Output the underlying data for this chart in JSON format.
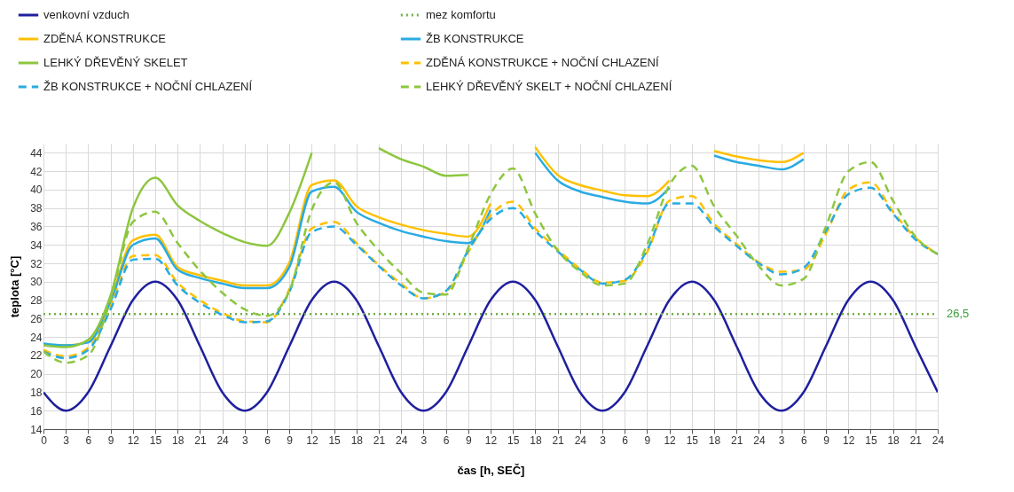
{
  "chart_data": {
    "type": "line",
    "xlabel": "čas [h, SEČ]",
    "ylabel": "teplota [°C]",
    "categories": [
      "0",
      "3",
      "6",
      "9",
      "12",
      "15",
      "18",
      "21",
      "24",
      "3",
      "6",
      "9",
      "12",
      "15",
      "18",
      "21",
      "24",
      "3",
      "6",
      "9",
      "12",
      "15",
      "18",
      "21",
      "24",
      "3",
      "6",
      "9",
      "12",
      "15",
      "18",
      "21",
      "24",
      "3",
      "6",
      "9",
      "12",
      "15",
      "18",
      "21",
      "24"
    ],
    "ylim": [
      14,
      45
    ],
    "yticks": [
      14,
      16,
      18,
      20,
      22,
      24,
      26,
      28,
      30,
      32,
      34,
      36,
      38,
      40,
      42,
      44
    ],
    "grid": true,
    "legend": "top",
    "series": [
      {
        "name": "venkovní vzduch",
        "color": "#1f1f9e",
        "line_style": "solid",
        "values": [
          18,
          16,
          18,
          23,
          28,
          30,
          28,
          23,
          18,
          16,
          18,
          23,
          28,
          30,
          28,
          23,
          18,
          16,
          18,
          23,
          28,
          30,
          28,
          23,
          18,
          16,
          18,
          23,
          28,
          30,
          28,
          23,
          18,
          16,
          18,
          23,
          28,
          30,
          28,
          23,
          18
        ]
      },
      {
        "name": "mez komfortu",
        "type": "line",
        "color": "#70ad47",
        "line_style": "dotted",
        "values": [
          26.5,
          26.5,
          26.5,
          26.5,
          26.5,
          26.5,
          26.5,
          26.5,
          26.5,
          26.5,
          26.5,
          26.5,
          26.5,
          26.5,
          26.5,
          26.5,
          26.5,
          26.5,
          26.5,
          26.5,
          26.5,
          26.5,
          26.5,
          26.5,
          26.5,
          26.5,
          26.5,
          26.5,
          26.5,
          26.5,
          26.5,
          26.5,
          26.5,
          26.5,
          26.5,
          26.5,
          26.5,
          26.5,
          26.5,
          26.5,
          26.5
        ],
        "value_labels": [
          null,
          null,
          null,
          null,
          null,
          null,
          null,
          null,
          null,
          null,
          null,
          null,
          null,
          null,
          null,
          null,
          null,
          null,
          null,
          null,
          null,
          null,
          null,
          null,
          null,
          null,
          null,
          null,
          null,
          null,
          null,
          null,
          null,
          null,
          null,
          null,
          null,
          null,
          null,
          null,
          "26,5"
        ]
      },
      {
        "name": "ZDĚNÁ KONSTRUKCE",
        "color": "#ffc000",
        "line_style": "solid",
        "values": [
          23.2,
          23.1,
          23.5,
          28.0,
          34.5,
          35.1,
          31.6,
          30.7,
          30.1,
          29.6,
          29.6,
          32.1,
          40.5,
          41.0,
          38.2,
          37.0,
          36.2,
          35.6,
          35.2,
          34.9,
          38.5,
          null,
          44.6,
          41.6,
          40.5,
          39.9,
          39.4,
          39.3,
          41.0,
          null,
          44.2,
          43.6,
          43.2,
          43.0,
          44.0,
          null,
          null,
          null,
          null,
          null,
          null
        ]
      },
      {
        "name": "ŽB KONSTRUKCE",
        "color": "#29abe2",
        "line_style": "solid",
        "values": [
          23.3,
          23.1,
          23.4,
          27.8,
          34.0,
          34.7,
          31.3,
          30.4,
          29.8,
          29.3,
          29.3,
          31.6,
          39.8,
          40.3,
          37.6,
          36.4,
          35.5,
          34.9,
          34.4,
          34.2,
          37.8,
          null,
          44.0,
          41.0,
          39.8,
          39.2,
          38.7,
          38.5,
          40.2,
          null,
          43.7,
          43.0,
          42.6,
          42.2,
          43.3,
          null,
          null,
          null,
          null,
          null,
          null
        ]
      },
      {
        "name": "LEHKÝ DŘEVĚNÝ SKELET",
        "color": "#8dc63f",
        "line_style": "solid",
        "values": [
          23.1,
          22.9,
          23.7,
          28.5,
          38.0,
          41.3,
          38.3,
          36.6,
          35.3,
          34.3,
          33.9,
          37.5,
          44.0,
          null,
          null,
          44.5,
          43.3,
          42.5,
          41.5,
          41.6,
          null,
          null,
          null,
          null,
          null,
          null,
          null,
          null,
          null,
          null,
          null,
          null,
          null,
          null,
          null,
          null,
          null,
          null,
          null,
          null,
          null
        ]
      },
      {
        "name": "ZDĚNÁ KONSTRUKCE + NOČNÍ CHLAZENÍ",
        "color": "#ffc000",
        "line_style": "dashed",
        "values": [
          22.6,
          21.9,
          22.8,
          27.3,
          32.8,
          32.9,
          29.9,
          28.0,
          26.6,
          25.7,
          25.6,
          29.2,
          35.8,
          36.5,
          34.2,
          31.8,
          29.8,
          28.2,
          28.9,
          33.2,
          37.2,
          38.7,
          35.8,
          33.5,
          31.4,
          29.9,
          30.1,
          33.2,
          38.8,
          39.3,
          36.3,
          34.1,
          32.1,
          31.1,
          31.3,
          35.2,
          40.0,
          40.8,
          37.6,
          34.8,
          33.0
        ]
      },
      {
        "name": "ŽB KONSTRUKCE + NOČNÍ CHLAZENÍ",
        "color": "#29abe2",
        "line_style": "dashed",
        "values": [
          22.4,
          21.7,
          22.6,
          27.0,
          32.4,
          32.5,
          29.6,
          27.7,
          26.4,
          25.6,
          25.7,
          28.9,
          35.4,
          36.0,
          34.0,
          31.7,
          29.6,
          28.2,
          29.0,
          33.4,
          36.8,
          38.0,
          35.5,
          33.3,
          31.3,
          29.8,
          30.2,
          33.4,
          38.5,
          38.5,
          36.0,
          33.9,
          32.0,
          30.8,
          31.5,
          35.5,
          39.5,
          40.2,
          37.4,
          34.6,
          33.0
        ]
      },
      {
        "name": "LEHKÝ DŘEVĚNÝ SKELT + NOČNÍ CHLAZENÍ",
        "color": "#8dc63f",
        "line_style": "dashed",
        "values": [
          22.4,
          21.2,
          22.0,
          28.0,
          36.5,
          37.6,
          34.2,
          31.2,
          28.8,
          27.0,
          26.3,
          29.0,
          37.8,
          40.8,
          36.4,
          33.4,
          30.9,
          28.8,
          28.6,
          33.7,
          39.5,
          42.3,
          37.4,
          33.4,
          31.1,
          29.6,
          29.8,
          34.0,
          40.5,
          42.6,
          38.2,
          35.0,
          31.7,
          29.6,
          30.3,
          36.0,
          42.0,
          43.0,
          38.8,
          34.9,
          33.0
        ]
      }
    ]
  }
}
